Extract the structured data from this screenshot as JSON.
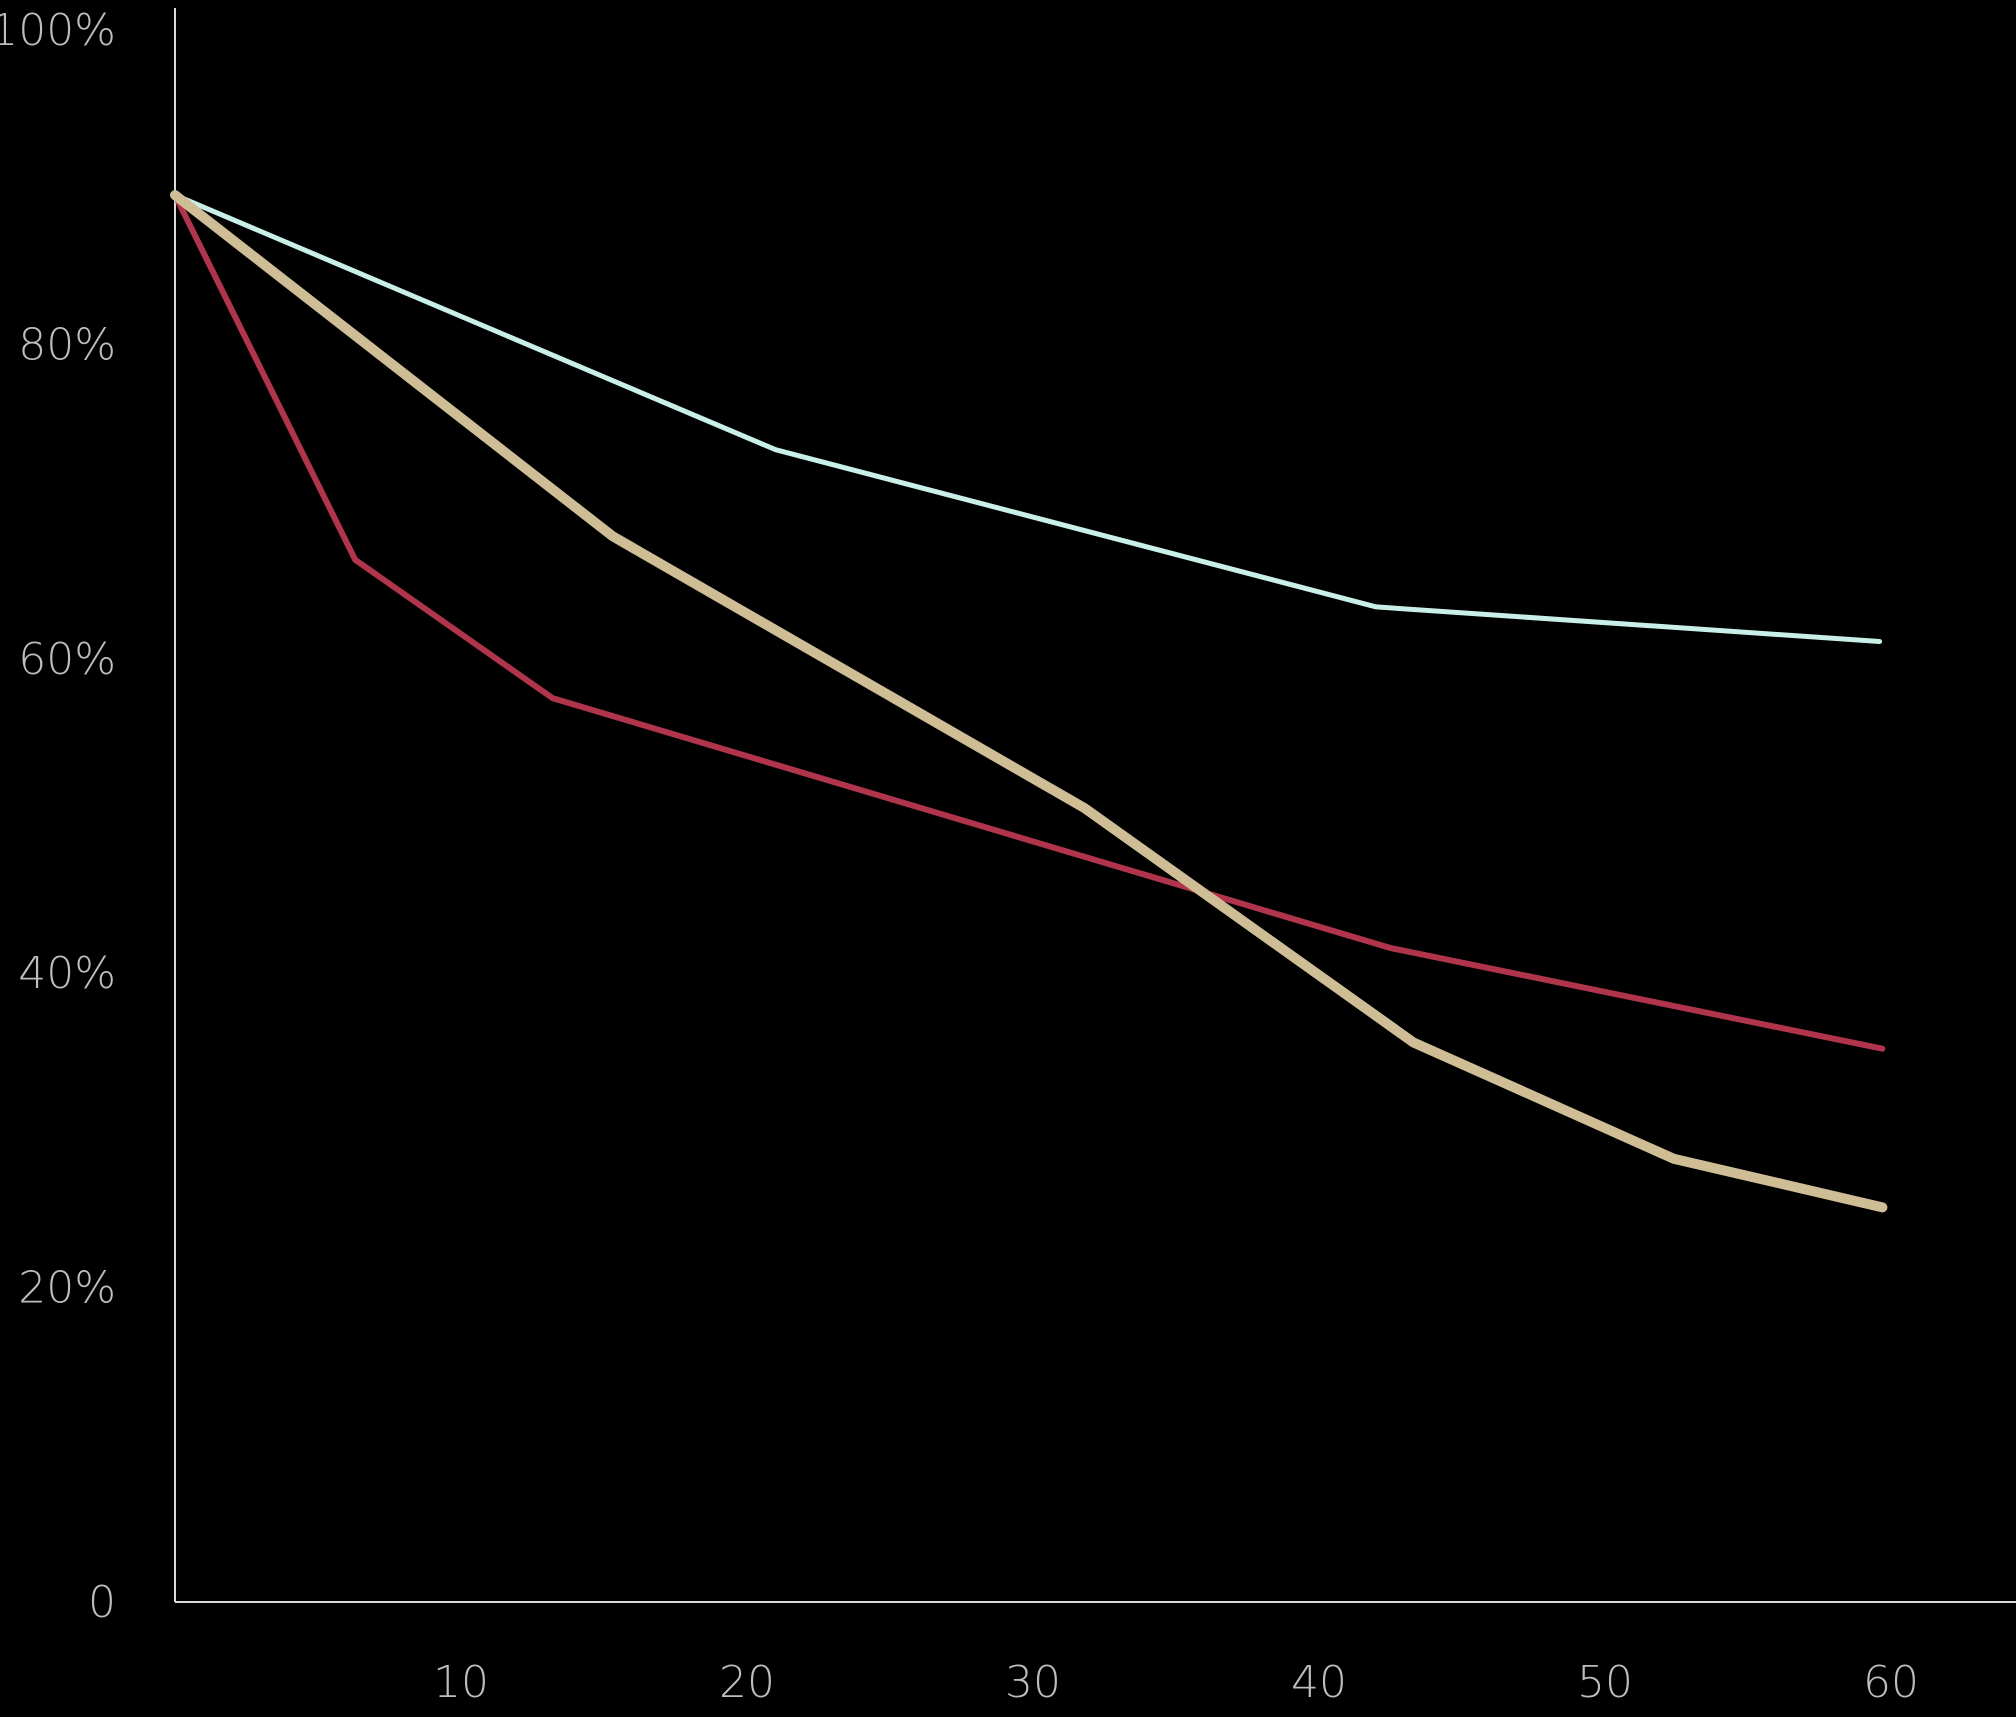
{
  "chart_data": {
    "type": "line",
    "title": "",
    "xlabel": "",
    "ylabel": "",
    "xlim": [
      0,
      63.5
    ],
    "ylim": [
      0,
      100
    ],
    "x_ticks": [
      {
        "value": 10,
        "label": "10"
      },
      {
        "value": 20,
        "label": "20"
      },
      {
        "value": 30,
        "label": "30"
      },
      {
        "value": 40,
        "label": "40"
      },
      {
        "value": 50,
        "label": "50"
      },
      {
        "value": 60,
        "label": "60"
      }
    ],
    "y_ticks": [
      {
        "value": 0,
        "label": "0"
      },
      {
        "value": 20,
        "label": "20%"
      },
      {
        "value": 40,
        "label": "40%"
      },
      {
        "value": 60,
        "label": "60%"
      },
      {
        "value": 80,
        "label": "80%"
      },
      {
        "value": 100,
        "label": "100%"
      }
    ],
    "grid": false,
    "legend": "none",
    "series": [
      {
        "color": "#c9f0e8",
        "stroke": "thin",
        "points": [
          [
            0,
            89.5
          ],
          [
            21,
            73.3
          ],
          [
            42,
            63.3
          ],
          [
            59.6,
            61.1
          ]
        ]
      },
      {
        "color": "#b0344c",
        "stroke": "medium",
        "points": [
          [
            0,
            89.5
          ],
          [
            6.3,
            66.3
          ],
          [
            13.2,
            57.5
          ],
          [
            42.5,
            41.6
          ],
          [
            59.7,
            35.2
          ]
        ]
      },
      {
        "color": "#cfbd95",
        "stroke": "thick",
        "points": [
          [
            0,
            89.5
          ],
          [
            15.3,
            67.8
          ],
          [
            31.8,
            50.5
          ],
          [
            43.3,
            35.6
          ],
          [
            52.4,
            28.2
          ],
          [
            59.7,
            25.1
          ]
        ]
      }
    ],
    "axis_color": "#d9d9d9",
    "tick_label_color": "#bdbdbd"
  }
}
